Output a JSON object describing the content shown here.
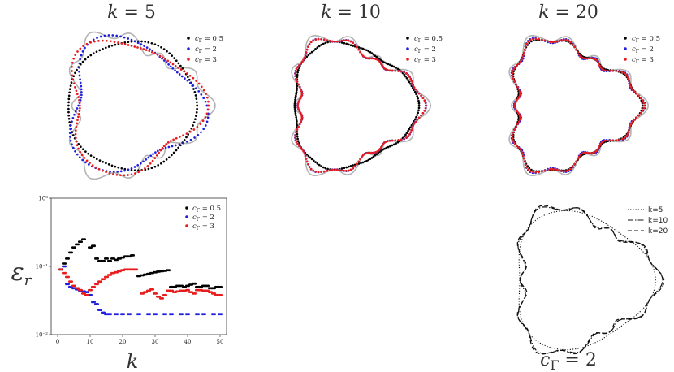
{
  "panels": [
    {
      "title": "k = 5",
      "k": 5
    },
    {
      "title": "k = 10",
      "k": 10
    },
    {
      "title": "k = 20",
      "k": 20
    }
  ],
  "panel_legend": [
    {
      "label": "c_Γ = 0.5",
      "color": "#000000"
    },
    {
      "label": "c_Γ = 2",
      "color": "#1f1fe0"
    },
    {
      "label": "c_Γ = 3",
      "color": "#e81c1c"
    }
  ],
  "reference_color": "#b3b3b3",
  "error_plot": {
    "ylabel": "ε_r",
    "xlabel": "k",
    "xticks": [
      "0",
      "10",
      "20",
      "30",
      "40",
      "50"
    ],
    "yticks": [
      "10⁰",
      "10⁻¹",
      "10⁻²"
    ]
  },
  "comparison": {
    "caption": "c_Γ = 2",
    "legend": [
      "k=5",
      "k=10",
      "k=20"
    ]
  },
  "chart_data": [
    {
      "type": "scatter",
      "title": "k = 5",
      "series": [
        {
          "name": "c_Γ = 0.5",
          "shape": "near-circle",
          "color": "#000000"
        },
        {
          "name": "c_Γ = 2",
          "shape": "smoothed trefoil",
          "color": "#1f1fe0"
        },
        {
          "name": "c_Γ = 3",
          "shape": "smoothed trefoil",
          "color": "#e81c1c"
        }
      ]
    },
    {
      "type": "scatter",
      "title": "k = 10",
      "series": [
        {
          "name": "c_Γ = 0.5",
          "shape": "rounded triangle",
          "color": "#000000"
        },
        {
          "name": "c_Γ = 2",
          "shape": "wavy trefoil",
          "color": "#1f1fe0"
        },
        {
          "name": "c_Γ = 3",
          "shape": "wavy trefoil",
          "color": "#e81c1c"
        }
      ]
    },
    {
      "type": "scatter",
      "title": "k = 20",
      "series": [
        {
          "name": "c_Γ = 0.5",
          "shape": "wavy trefoil",
          "color": "#000000"
        },
        {
          "name": "c_Γ = 2",
          "shape": "wavy trefoil",
          "color": "#1f1fe0"
        },
        {
          "name": "c_Γ = 3",
          "shape": "wavy trefoil",
          "color": "#e81c1c"
        }
      ]
    },
    {
      "type": "scatter",
      "title": "",
      "xlabel": "k",
      "ylabel": "ε_r",
      "xlim": [
        -2,
        52
      ],
      "ylim": [
        0.01,
        1
      ],
      "yscale": "log",
      "legend_position": "top-right",
      "series": [
        {
          "name": "c_Γ = 0.5",
          "color": "#000000",
          "x": [
            1,
            2,
            3,
            4,
            5,
            6,
            7,
            8,
            10,
            11,
            12,
            13,
            14,
            15,
            16,
            17,
            18,
            19,
            20,
            21,
            22,
            23,
            25,
            26,
            27,
            28,
            29,
            30,
            31,
            32,
            33,
            34,
            35,
            36,
            37,
            38,
            39,
            40,
            41,
            42,
            43,
            44,
            45,
            46,
            47,
            48,
            49,
            50
          ],
          "y": [
            0.09,
            0.11,
            0.13,
            0.16,
            0.19,
            0.21,
            0.23,
            0.25,
            0.19,
            0.2,
            0.13,
            0.12,
            0.12,
            0.13,
            0.12,
            0.13,
            0.125,
            0.13,
            0.135,
            0.14,
            0.14,
            0.145,
            0.072,
            0.074,
            0.076,
            0.078,
            0.08,
            0.082,
            0.084,
            0.085,
            0.086,
            0.088,
            0.05,
            0.05,
            0.052,
            0.052,
            0.05,
            0.052,
            0.054,
            0.056,
            0.05,
            0.05,
            0.052,
            0.052,
            0.048,
            0.048,
            0.05,
            0.05
          ]
        },
        {
          "name": "c_Γ = 2",
          "color": "#1f1fe0",
          "x": [
            1,
            2,
            3,
            4,
            5,
            6,
            7,
            8,
            9,
            10,
            11,
            12,
            13,
            14,
            15,
            16,
            18,
            20,
            22,
            25,
            28,
            30,
            33,
            35,
            38,
            40,
            43,
            45,
            48,
            50
          ],
          "y": [
            0.09,
            0.1,
            0.055,
            0.05,
            0.048,
            0.046,
            0.044,
            0.043,
            0.042,
            0.038,
            0.03,
            0.028,
            0.023,
            0.021,
            0.02,
            0.02,
            0.02,
            0.02,
            0.02,
            0.02,
            0.02,
            0.02,
            0.02,
            0.02,
            0.02,
            0.02,
            0.02,
            0.02,
            0.02,
            0.02
          ]
        },
        {
          "name": "c_Γ = 3",
          "color": "#e81c1c",
          "x": [
            1,
            2,
            3,
            4,
            5,
            6,
            7,
            8,
            9,
            10,
            11,
            12,
            13,
            14,
            15,
            16,
            17,
            18,
            19,
            20,
            21,
            22,
            23,
            24,
            26,
            27,
            28,
            29,
            30,
            31,
            32,
            33,
            34,
            35,
            36,
            37,
            38,
            39,
            40,
            41,
            42,
            43,
            44,
            45,
            46,
            47,
            48,
            49,
            50
          ],
          "y": [
            0.09,
            0.08,
            0.07,
            0.06,
            0.052,
            0.048,
            0.045,
            0.04,
            0.038,
            0.045,
            0.05,
            0.055,
            0.06,
            0.065,
            0.07,
            0.075,
            0.08,
            0.082,
            0.085,
            0.088,
            0.09,
            0.09,
            0.09,
            0.09,
            0.04,
            0.042,
            0.044,
            0.046,
            0.04,
            0.036,
            0.034,
            0.038,
            0.044,
            0.044,
            0.042,
            0.043,
            0.044,
            0.044,
            0.045,
            0.042,
            0.04,
            0.045,
            0.045,
            0.044,
            0.044,
            0.042,
            0.04,
            0.038,
            0.038
          ]
        }
      ]
    },
    {
      "type": "line",
      "title": "c_Γ = 2",
      "legend_position": "top-right",
      "series": [
        {
          "name": "k=5",
          "dash": "dotted",
          "color": "#000000"
        },
        {
          "name": "k=10",
          "dash": "dashdot",
          "color": "#000000"
        },
        {
          "name": "k=20",
          "dash": "dashed",
          "color": "#000000"
        }
      ]
    }
  ]
}
